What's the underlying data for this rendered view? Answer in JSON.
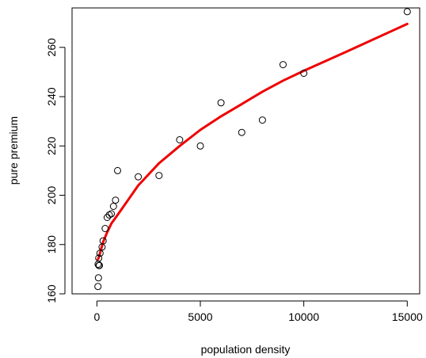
{
  "chart_data": {
    "type": "scatter",
    "title": "",
    "xlabel": "population density",
    "ylabel": "pure premium",
    "xlim": [
      -1200,
      15600
    ],
    "ylim": [
      160,
      276
    ],
    "x_ticks": [
      0,
      5000,
      10000,
      15000
    ],
    "y_ticks": [
      160,
      180,
      200,
      220,
      240,
      260
    ],
    "grid": false,
    "legend": "none",
    "points_color": "#000000",
    "line_color": "#ee0000",
    "points": [
      {
        "x": 50,
        "y": 163
      },
      {
        "x": 75,
        "y": 166.5
      },
      {
        "x": 100,
        "y": 171.5
      },
      {
        "x": 120,
        "y": 171.5
      },
      {
        "x": 60,
        "y": 172
      },
      {
        "x": 90,
        "y": 174.5
      },
      {
        "x": 150,
        "y": 176.5
      },
      {
        "x": 250,
        "y": 179
      },
      {
        "x": 300,
        "y": 181.5
      },
      {
        "x": 400,
        "y": 186.5
      },
      {
        "x": 500,
        "y": 191
      },
      {
        "x": 600,
        "y": 192
      },
      {
        "x": 700,
        "y": 192.5
      },
      {
        "x": 800,
        "y": 195.5
      },
      {
        "x": 900,
        "y": 198
      },
      {
        "x": 1000,
        "y": 210
      },
      {
        "x": 2000,
        "y": 207.5
      },
      {
        "x": 3000,
        "y": 208
      },
      {
        "x": 4000,
        "y": 222.5
      },
      {
        "x": 5000,
        "y": 220
      },
      {
        "x": 6000,
        "y": 237.5
      },
      {
        "x": 7000,
        "y": 225.5
      },
      {
        "x": 8000,
        "y": 230.5
      },
      {
        "x": 9000,
        "y": 253
      },
      {
        "x": 10000,
        "y": 249.5
      },
      {
        "x": 15000,
        "y": 274.5
      }
    ],
    "fit_line": [
      {
        "x": 50,
        "y": 174
      },
      {
        "x": 100,
        "y": 175
      },
      {
        "x": 200,
        "y": 178
      },
      {
        "x": 300,
        "y": 181
      },
      {
        "x": 500,
        "y": 185
      },
      {
        "x": 700,
        "y": 188.5
      },
      {
        "x": 1000,
        "y": 192
      },
      {
        "x": 1500,
        "y": 198
      },
      {
        "x": 2000,
        "y": 204
      },
      {
        "x": 3000,
        "y": 213
      },
      {
        "x": 4000,
        "y": 220
      },
      {
        "x": 5000,
        "y": 226.5
      },
      {
        "x": 6000,
        "y": 232
      },
      {
        "x": 7000,
        "y": 237
      },
      {
        "x": 8000,
        "y": 242
      },
      {
        "x": 9000,
        "y": 246.5
      },
      {
        "x": 10000,
        "y": 250.5
      },
      {
        "x": 12000,
        "y": 258
      },
      {
        "x": 15000,
        "y": 269.5
      }
    ]
  }
}
